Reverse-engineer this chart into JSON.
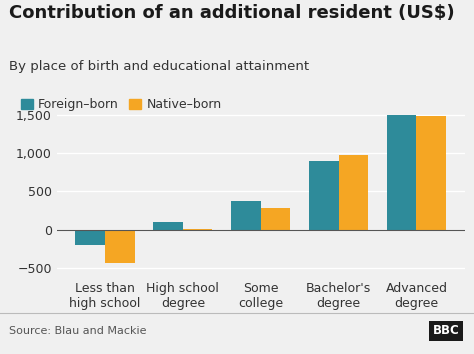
{
  "title": "Contribution of an additional resident (US$)",
  "subtitle": "By place of birth and educational attainment",
  "categories": [
    "Less than\nhigh school",
    "High school\ndegree",
    "Some\ncollege",
    "Bachelor's\ndegree",
    "Advanced\ndegree"
  ],
  "foreign_born": [
    -200,
    100,
    380,
    900,
    1500
  ],
  "native_born": [
    -430,
    10,
    290,
    975,
    1480
  ],
  "foreign_color": "#2e8b9a",
  "native_color": "#f5a623",
  "ylim": [
    -600,
    1700
  ],
  "yticks": [
    -500,
    0,
    500,
    1000,
    1500
  ],
  "source": "Source: Blau and Mackie",
  "bbc_text": "BBC",
  "legend_foreign": "Foreign–born",
  "legend_native": "Native–born",
  "background_color": "#f0f0f0",
  "title_fontsize": 13,
  "subtitle_fontsize": 9.5,
  "tick_fontsize": 9,
  "legend_fontsize": 9
}
